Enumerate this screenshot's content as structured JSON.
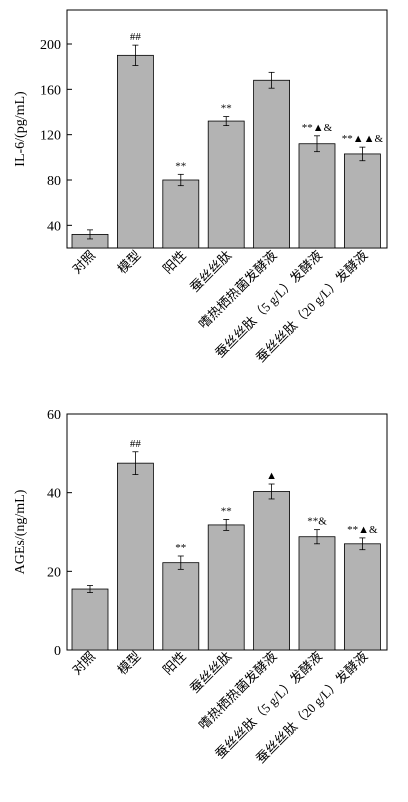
{
  "chart_data": [
    {
      "type": "bar",
      "ylabel": "IL-6/(pg/mL)",
      "ylim": [
        20,
        230
      ],
      "yticks": [
        40,
        80,
        120,
        160,
        200
      ],
      "categories": [
        "对照",
        "模型",
        "阳性",
        "蚕丝丝肽",
        "嗜热栖热菌发酵液",
        "蚕丝丝肽（5 g/L）发酵液",
        "蚕丝丝肽（20 g/L）发酵液"
      ],
      "values": [
        32,
        190,
        80,
        132,
        168,
        112,
        103
      ],
      "errors": [
        4,
        9,
        5,
        4,
        7,
        7,
        6
      ],
      "significance": [
        "",
        "##",
        "**",
        "**",
        "",
        "**▲&",
        "**▲▲&"
      ],
      "bar_color": "#b3b3b3"
    },
    {
      "type": "bar",
      "ylabel": "AGEs/(ng/mL)",
      "ylim": [
        0,
        60
      ],
      "yticks": [
        0,
        20,
        40,
        60
      ],
      "categories": [
        "对照",
        "模型",
        "阳性",
        "蚕丝丝肽",
        "嗜热栖热菌发酵液",
        "蚕丝丝肽（5 g/L）发酵液",
        "蚕丝丝肽（20 g/L）发酵液"
      ],
      "values": [
        15.5,
        47.5,
        22.2,
        31.8,
        40.3,
        28.8,
        27.0
      ],
      "errors": [
        0.9,
        2.9,
        1.7,
        1.4,
        1.9,
        1.8,
        1.5
      ],
      "significance": [
        "",
        "##",
        "**",
        "**",
        "▲",
        "**&",
        "**▲&"
      ],
      "bar_color": "#b3b3b3"
    }
  ]
}
